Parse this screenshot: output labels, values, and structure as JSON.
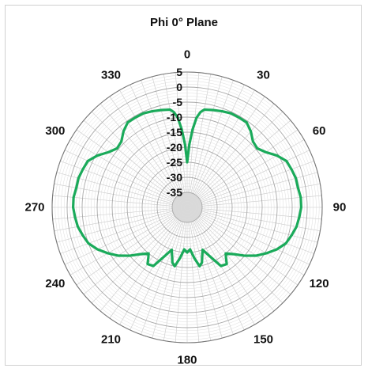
{
  "chart_data": {
    "type": "polar-line",
    "title": "Phi 0° Plane",
    "angle_ticks": [
      "0",
      "30",
      "60",
      "90",
      "120",
      "150",
      "180",
      "210",
      "240",
      "270",
      "300",
      "330"
    ],
    "angle_tick_values_deg": [
      0,
      30,
      60,
      90,
      120,
      150,
      180,
      210,
      240,
      270,
      300,
      330
    ],
    "radial_ticks": [
      "5",
      "0",
      "-5",
      "-10",
      "-15",
      "-20",
      "-25",
      "-30",
      "-35"
    ],
    "radial_tick_values": [
      5,
      0,
      -5,
      -10,
      -15,
      -20,
      -25,
      -30,
      -35
    ],
    "rlim": [
      -40,
      5
    ],
    "angular_grid_step_deg": 5,
    "grid": true,
    "series": [
      {
        "color": "#1aaa5a",
        "points": [
          [
            0,
            -25
          ],
          [
            2,
            -19
          ],
          [
            4,
            -14
          ],
          [
            6,
            -10
          ],
          [
            8,
            -8
          ],
          [
            10,
            -7
          ],
          [
            15,
            -6.5
          ],
          [
            20,
            -6
          ],
          [
            25,
            -5.5
          ],
          [
            30,
            -5.5
          ],
          [
            35,
            -5.5
          ],
          [
            40,
            -7
          ],
          [
            45,
            -9
          ],
          [
            50,
            -9.5
          ],
          [
            55,
            -8
          ],
          [
            60,
            -5.5
          ],
          [
            65,
            -3.5
          ],
          [
            70,
            -3
          ],
          [
            75,
            -2.5
          ],
          [
            80,
            -2.5
          ],
          [
            85,
            -2
          ],
          [
            90,
            -2
          ],
          [
            95,
            -2.5
          ],
          [
            100,
            -3
          ],
          [
            105,
            -4
          ],
          [
            110,
            -5
          ],
          [
            115,
            -7
          ],
          [
            120,
            -9.5
          ],
          [
            125,
            -12
          ],
          [
            130,
            -15
          ],
          [
            135,
            -18
          ],
          [
            140,
            -20
          ],
          [
            142,
            -19
          ],
          [
            145,
            -17
          ],
          [
            150,
            -17.5
          ],
          [
            155,
            -22
          ],
          [
            160,
            -25
          ],
          [
            165,
            -21
          ],
          [
            168,
            -20
          ],
          [
            172,
            -23
          ],
          [
            176,
            -26
          ],
          [
            180,
            -25
          ],
          [
            184,
            -26
          ],
          [
            188,
            -23
          ],
          [
            192,
            -20
          ],
          [
            195,
            -21
          ],
          [
            200,
            -25
          ],
          [
            205,
            -22
          ],
          [
            210,
            -17.5
          ],
          [
            215,
            -17
          ],
          [
            218,
            -19
          ],
          [
            220,
            -20
          ],
          [
            225,
            -18
          ],
          [
            230,
            -15
          ],
          [
            235,
            -12
          ],
          [
            240,
            -9.5
          ],
          [
            245,
            -7
          ],
          [
            250,
            -5
          ],
          [
            255,
            -4
          ],
          [
            260,
            -3
          ],
          [
            265,
            -2.5
          ],
          [
            270,
            -2
          ],
          [
            275,
            -2
          ],
          [
            280,
            -2.5
          ],
          [
            285,
            -2.5
          ],
          [
            290,
            -3
          ],
          [
            295,
            -3.5
          ],
          [
            300,
            -5.5
          ],
          [
            305,
            -8
          ],
          [
            310,
            -9.5
          ],
          [
            315,
            -9
          ],
          [
            320,
            -7
          ],
          [
            325,
            -5.5
          ],
          [
            330,
            -5.5
          ],
          [
            335,
            -5.5
          ],
          [
            340,
            -6
          ],
          [
            345,
            -6.5
          ],
          [
            350,
            -7
          ],
          [
            352,
            -8
          ],
          [
            354,
            -10
          ],
          [
            356,
            -14
          ],
          [
            358,
            -19
          ],
          [
            360,
            -25
          ]
        ]
      }
    ]
  }
}
